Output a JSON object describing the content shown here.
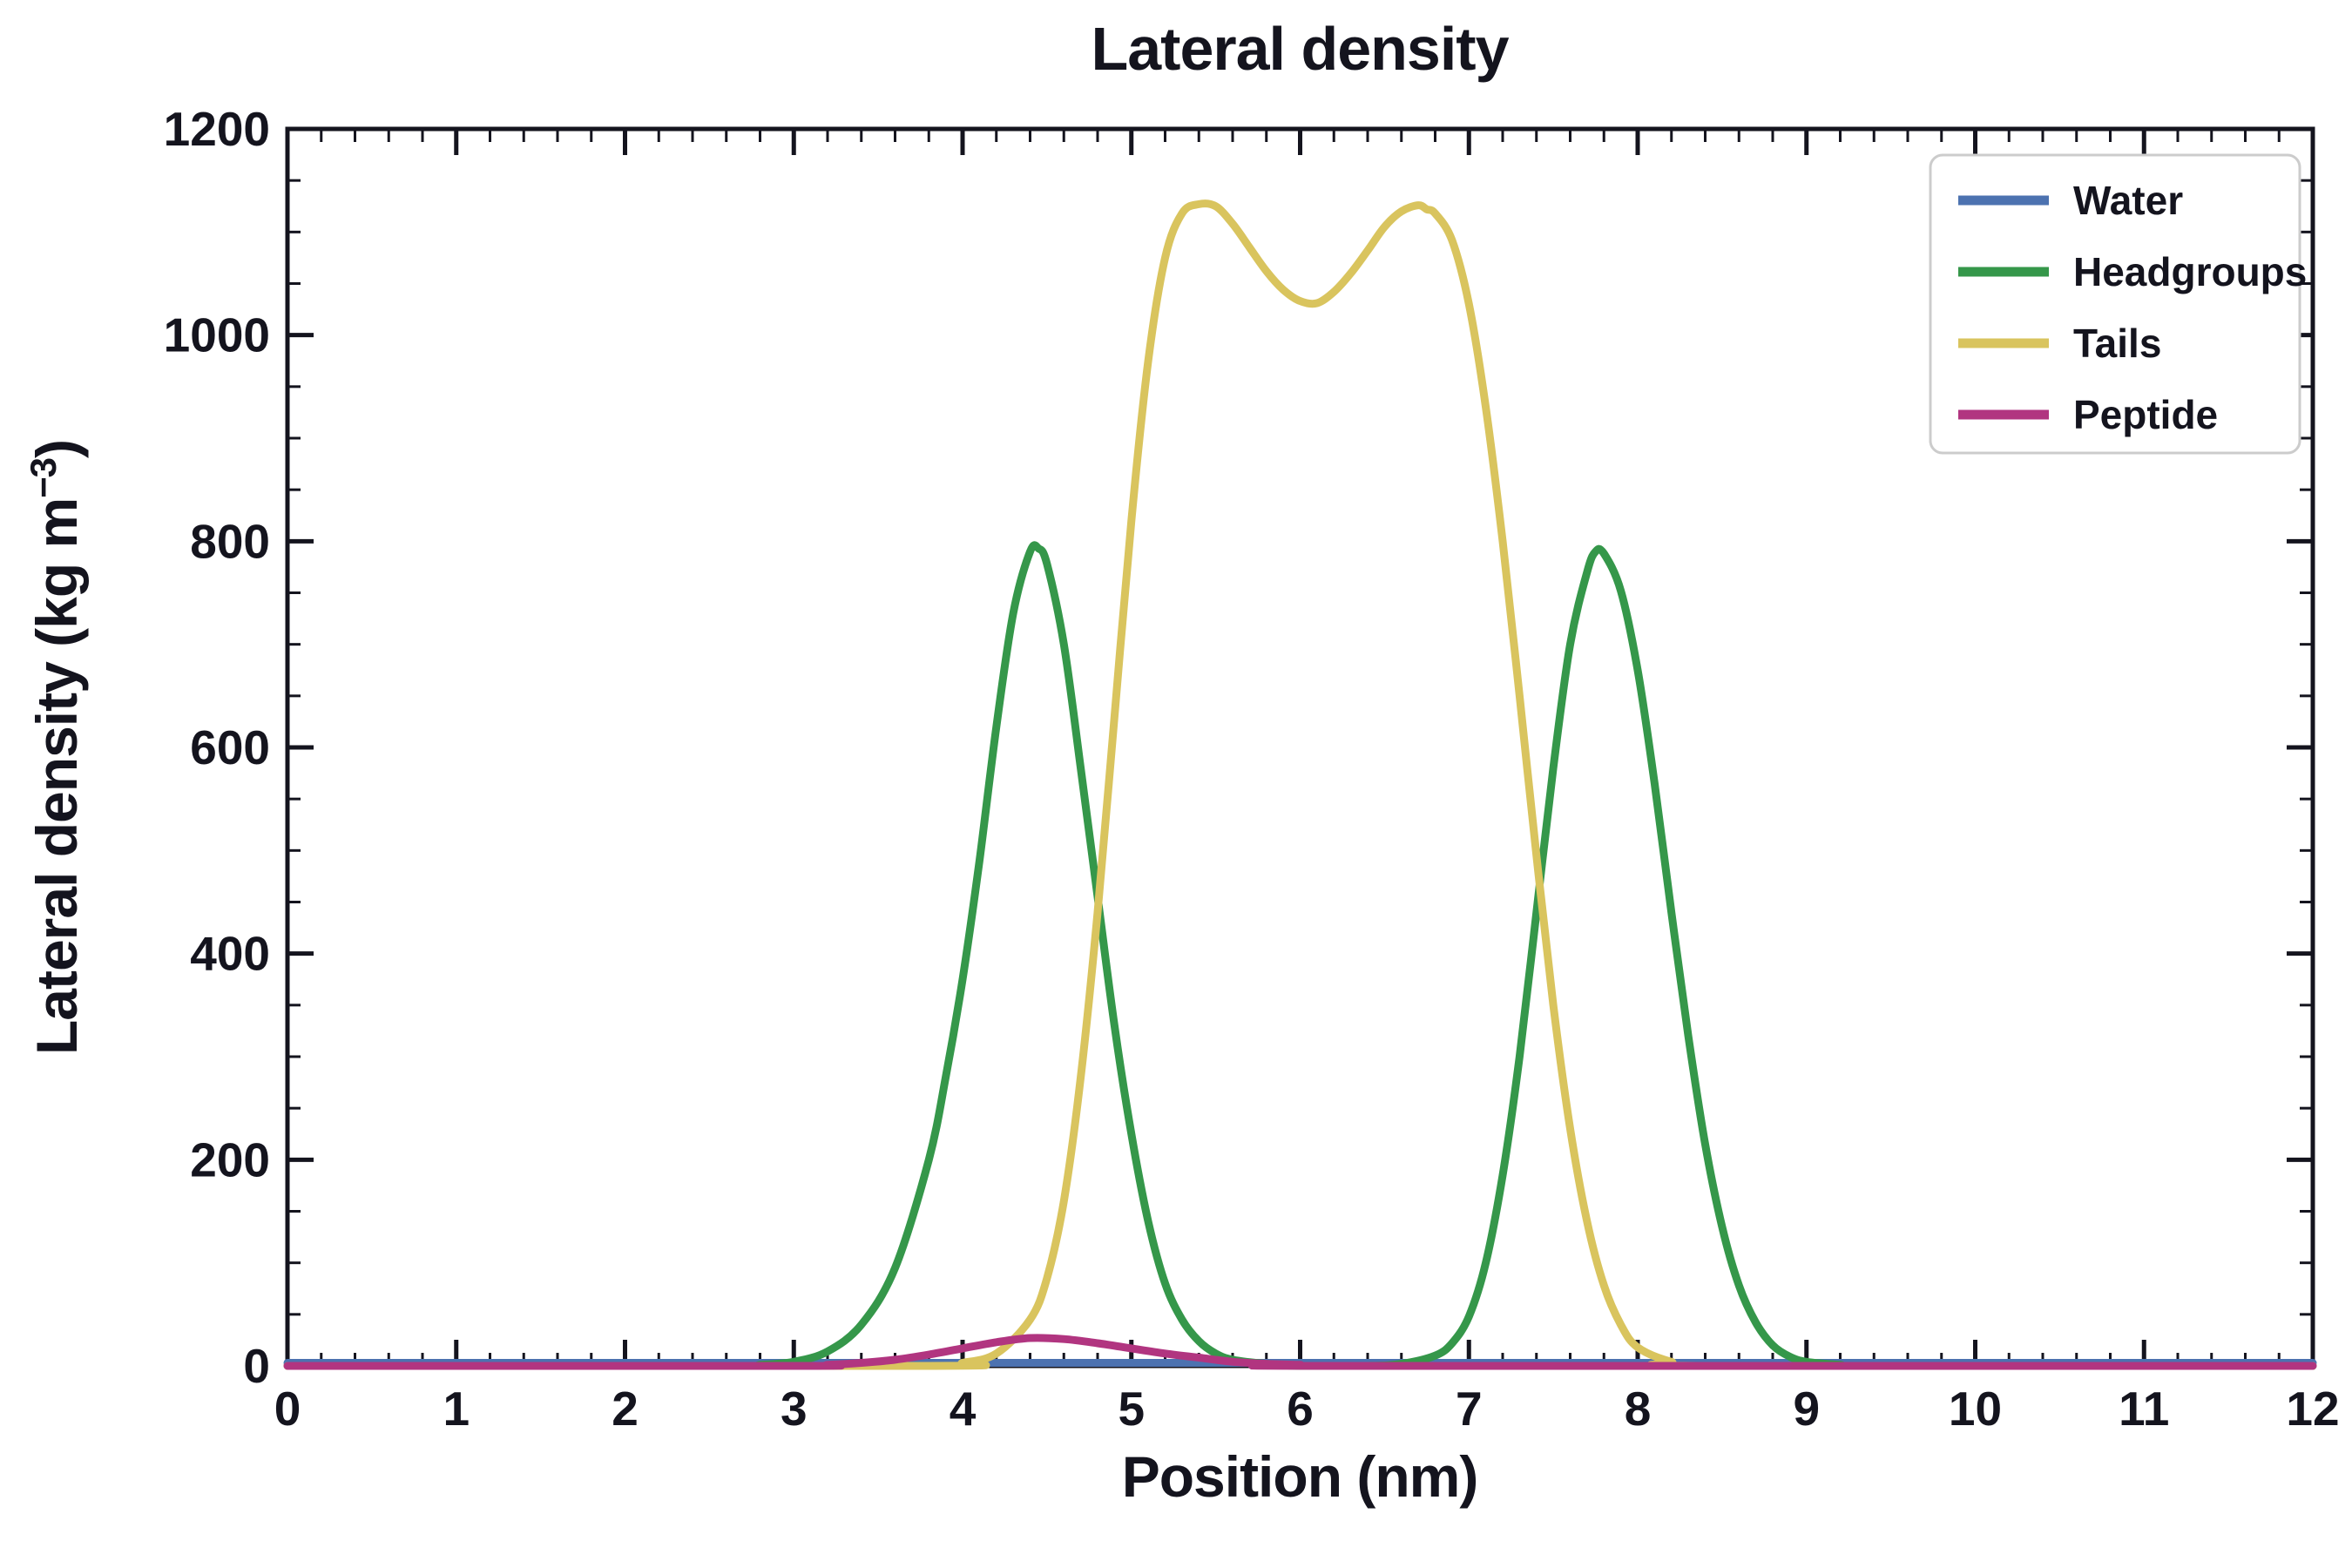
{
  "chart_data": {
    "type": "line",
    "title": "Lateral density",
    "xlabel": "Position (nm)",
    "ylabel": "Lateral density (kg m⁻³)",
    "ylabel_parts": {
      "main": "Lateral density (kg m",
      "sup": "−3",
      "close": ")"
    },
    "xlim": [
      0,
      12
    ],
    "ylim": [
      0,
      1200
    ],
    "xticks": [
      0,
      1,
      2,
      3,
      4,
      5,
      6,
      7,
      8,
      9,
      10,
      11,
      12
    ],
    "yticks": [
      0,
      200,
      400,
      600,
      800,
      1000,
      1200
    ],
    "x_minor_step": 0.2,
    "y_minor_step": 50,
    "grid": false,
    "legend_position": "upper right",
    "axis_color": "#14141e",
    "legend_border_color": "#cccccc",
    "series": [
      {
        "name": "Water",
        "color": "#4C72B0",
        "points": [
          [
            0,
            3
          ],
          [
            2,
            3
          ],
          [
            4,
            3
          ],
          [
            6,
            3
          ],
          [
            8,
            3
          ],
          [
            10,
            3
          ],
          [
            12,
            3
          ]
        ]
      },
      {
        "name": "Headgroups",
        "color": "#35974a",
        "points": [
          [
            0,
            0
          ],
          [
            2.6,
            0
          ],
          [
            2.8,
            1
          ],
          [
            3.0,
            4
          ],
          [
            3.2,
            14
          ],
          [
            3.4,
            40
          ],
          [
            3.6,
            95
          ],
          [
            3.8,
            200
          ],
          [
            3.9,
            280
          ],
          [
            4.0,
            375
          ],
          [
            4.1,
            490
          ],
          [
            4.2,
            620
          ],
          [
            4.3,
            730
          ],
          [
            4.4,
            790
          ],
          [
            4.45,
            793
          ],
          [
            4.5,
            778
          ],
          [
            4.6,
            700
          ],
          [
            4.7,
            580
          ],
          [
            4.8,
            455
          ],
          [
            4.9,
            330
          ],
          [
            5.0,
            225
          ],
          [
            5.1,
            140
          ],
          [
            5.2,
            80
          ],
          [
            5.3,
            45
          ],
          [
            5.4,
            24
          ],
          [
            5.5,
            12
          ],
          [
            5.6,
            6
          ],
          [
            5.8,
            2
          ],
          [
            6.0,
            0
          ],
          [
            6.4,
            0
          ],
          [
            6.6,
            2
          ],
          [
            6.8,
            10
          ],
          [
            6.9,
            22
          ],
          [
            7.0,
            48
          ],
          [
            7.1,
            100
          ],
          [
            7.2,
            185
          ],
          [
            7.3,
            300
          ],
          [
            7.4,
            440
          ],
          [
            7.5,
            580
          ],
          [
            7.6,
            700
          ],
          [
            7.7,
            770
          ],
          [
            7.75,
            790
          ],
          [
            7.8,
            788
          ],
          [
            7.9,
            752
          ],
          [
            8.0,
            675
          ],
          [
            8.1,
            565
          ],
          [
            8.2,
            440
          ],
          [
            8.3,
            320
          ],
          [
            8.4,
            215
          ],
          [
            8.5,
            135
          ],
          [
            8.6,
            78
          ],
          [
            8.7,
            42
          ],
          [
            8.8,
            20
          ],
          [
            8.9,
            9
          ],
          [
            9.0,
            4
          ],
          [
            9.2,
            1
          ],
          [
            9.4,
            0
          ],
          [
            12,
            0
          ]
        ]
      },
      {
        "name": "Tails",
        "color": "#d9c45e",
        "points": [
          [
            0,
            0
          ],
          [
            3.8,
            0
          ],
          [
            4.0,
            3
          ],
          [
            4.2,
            12
          ],
          [
            4.4,
            45
          ],
          [
            4.5,
            85
          ],
          [
            4.6,
            160
          ],
          [
            4.7,
            280
          ],
          [
            4.8,
            440
          ],
          [
            4.9,
            630
          ],
          [
            5.0,
            820
          ],
          [
            5.1,
            975
          ],
          [
            5.2,
            1075
          ],
          [
            5.3,
            1118
          ],
          [
            5.4,
            1127
          ],
          [
            5.5,
            1125
          ],
          [
            5.6,
            1108
          ],
          [
            5.7,
            1085
          ],
          [
            5.8,
            1062
          ],
          [
            5.9,
            1044
          ],
          [
            6.0,
            1033
          ],
          [
            6.1,
            1031
          ],
          [
            6.2,
            1042
          ],
          [
            6.3,
            1060
          ],
          [
            6.4,
            1082
          ],
          [
            6.5,
            1105
          ],
          [
            6.6,
            1120
          ],
          [
            6.7,
            1126
          ],
          [
            6.75,
            1122
          ],
          [
            6.8,
            1118
          ],
          [
            6.9,
            1092
          ],
          [
            7.0,
            1030
          ],
          [
            7.1,
            930
          ],
          [
            7.2,
            800
          ],
          [
            7.3,
            650
          ],
          [
            7.4,
            495
          ],
          [
            7.5,
            350
          ],
          [
            7.6,
            230
          ],
          [
            7.7,
            140
          ],
          [
            7.8,
            78
          ],
          [
            7.9,
            40
          ],
          [
            8.0,
            18
          ],
          [
            8.2,
            4
          ],
          [
            8.4,
            0
          ],
          [
            12,
            0
          ]
        ]
      },
      {
        "name": "Peptide",
        "color": "#b13580",
        "points": [
          [
            0,
            0
          ],
          [
            3.0,
            0
          ],
          [
            3.2,
            1
          ],
          [
            3.4,
            3
          ],
          [
            3.6,
            6
          ],
          [
            3.8,
            11
          ],
          [
            4.0,
            17
          ],
          [
            4.2,
            23
          ],
          [
            4.4,
            27
          ],
          [
            4.6,
            26
          ],
          [
            4.8,
            22
          ],
          [
            5.0,
            17
          ],
          [
            5.2,
            12
          ],
          [
            5.4,
            8
          ],
          [
            5.6,
            4
          ],
          [
            5.8,
            2
          ],
          [
            6.0,
            1
          ],
          [
            6.2,
            0
          ],
          [
            12,
            0
          ]
        ]
      }
    ]
  }
}
